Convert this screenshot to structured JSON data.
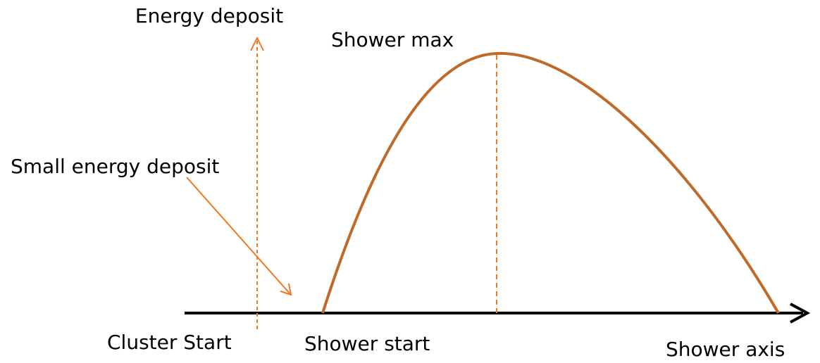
{
  "labels": {
    "energy_deposit": "Energy deposit",
    "shower_max": "Shower max",
    "small_energy_deposit": "Small energy deposit",
    "cluster_start": "Cluster Start",
    "shower_start": "Shower start",
    "shower_axis": "Shower axis"
  }
}
